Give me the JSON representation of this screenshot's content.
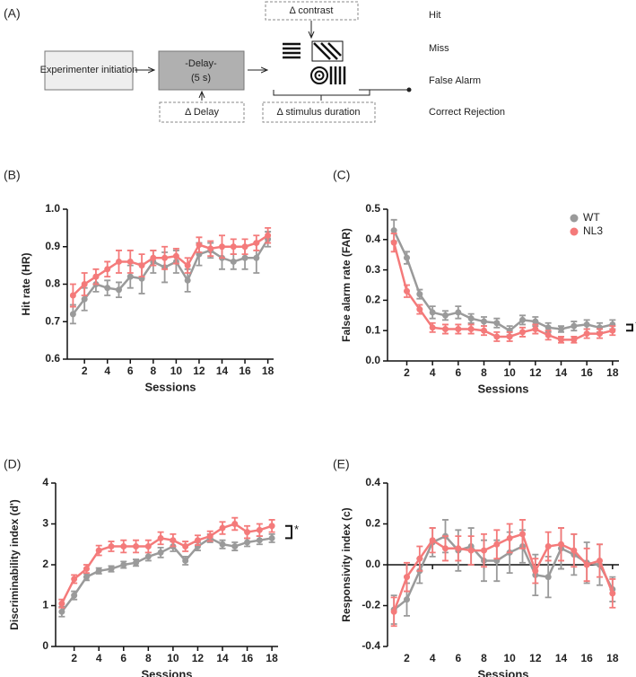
{
  "diagram": {
    "panel_label": "(A)",
    "initiation": "Experimenter initiation",
    "delay": "-Delay-",
    "delay_time": "(5 s)",
    "delta_delay": "Δ Delay",
    "delta_contrast": "Δ contrast",
    "delta_duration": "Δ stimulus duration",
    "outcomes": [
      "Hit",
      "Miss",
      "False Alarm",
      "Correct Rejection"
    ]
  },
  "chart_data": [
    {
      "type": "line",
      "panel_label": "(B)",
      "y_label": "Hit rate (HR)",
      "x_label": "Sessions",
      "x": [
        1,
        2,
        3,
        4,
        5,
        6,
        7,
        8,
        9,
        10,
        11,
        12,
        13,
        14,
        15,
        16,
        17,
        18
      ],
      "xlim": [
        0.5,
        18.5
      ],
      "xticks": [
        2,
        4,
        6,
        8,
        10,
        12,
        14,
        16,
        18
      ],
      "ylim": [
        0.6,
        1
      ],
      "yticks": [
        0.6,
        0.7,
        0.8,
        0.9,
        {
          "value": 1,
          "label": "1.0"
        }
      ],
      "series": [
        {
          "name": "WT",
          "color": "#9a9a9a",
          "values": [
            0.72,
            0.76,
            0.8,
            0.79,
            0.785,
            0.82,
            0.815,
            0.86,
            0.845,
            0.86,
            0.81,
            0.88,
            0.89,
            0.87,
            0.86,
            0.87,
            0.87,
            0.92
          ],
          "errors": [
            0.025,
            0.03,
            0.02,
            0.02,
            0.02,
            0.03,
            0.04,
            0.03,
            0.04,
            0.03,
            0.03,
            0.03,
            0.02,
            0.03,
            0.02,
            0.03,
            0.04,
            0.02
          ]
        },
        {
          "name": "NL3",
          "color": "#f47a7a",
          "values": [
            0.77,
            0.8,
            0.82,
            0.84,
            0.86,
            0.86,
            0.85,
            0.87,
            0.87,
            0.875,
            0.85,
            0.905,
            0.895,
            0.9,
            0.9,
            0.9,
            0.91,
            0.93
          ],
          "errors": [
            0.03,
            0.03,
            0.02,
            0.02,
            0.03,
            0.03,
            0.03,
            0.02,
            0.03,
            0.02,
            0.02,
            0.02,
            0.02,
            0.03,
            0.02,
            0.02,
            0.02,
            0.02
          ]
        }
      ]
    },
    {
      "type": "line",
      "panel_label": "(C)",
      "y_label": "False alarm rate (FAR)",
      "x_label": "Sessions",
      "legend": "upper right",
      "annotation": "*",
      "x": [
        1,
        2,
        3,
        4,
        5,
        6,
        7,
        8,
        9,
        10,
        11,
        12,
        13,
        14,
        15,
        16,
        17,
        18
      ],
      "xlim": [
        0.5,
        18.5
      ],
      "xticks": [
        2,
        4,
        6,
        8,
        10,
        12,
        14,
        16,
        18
      ],
      "ylim": [
        0,
        0.5
      ],
      "yticks": [
        {
          "value": 0,
          "label": "0.0"
        },
        0.1,
        0.2,
        0.3,
        0.4,
        0.5
      ],
      "series": [
        {
          "name": "WT",
          "color": "#9a9a9a",
          "values": [
            0.43,
            0.34,
            0.22,
            0.16,
            0.15,
            0.16,
            0.14,
            0.13,
            0.125,
            0.1,
            0.135,
            0.13,
            0.11,
            0.105,
            0.115,
            0.12,
            0.11,
            0.12
          ],
          "errors": [
            0.035,
            0.02,
            0.015,
            0.02,
            0.015,
            0.02,
            0.015,
            0.015,
            0.015,
            0.015,
            0.015,
            0.015,
            0.015,
            0.01,
            0.015,
            0.015,
            0.015,
            0.015
          ]
        },
        {
          "name": "NL3",
          "color": "#f47a7a",
          "values": [
            0.39,
            0.23,
            0.17,
            0.11,
            0.105,
            0.105,
            0.105,
            0.1,
            0.08,
            0.08,
            0.095,
            0.105,
            0.085,
            0.07,
            0.07,
            0.09,
            0.09,
            0.1
          ],
          "errors": [
            0.03,
            0.02,
            0.015,
            0.015,
            0.015,
            0.015,
            0.015,
            0.015,
            0.015,
            0.015,
            0.015,
            0.015,
            0.015,
            0.01,
            0.01,
            0.015,
            0.015,
            0.015
          ]
        }
      ]
    },
    {
      "type": "line",
      "panel_label": "(D)",
      "y_label": "Discriminability index (d')",
      "x_label": "Sessions",
      "annotation": "*",
      "x": [
        1,
        2,
        3,
        4,
        5,
        6,
        7,
        8,
        9,
        10,
        11,
        12,
        13,
        14,
        15,
        16,
        17,
        18
      ],
      "xlim": [
        0.5,
        18.5
      ],
      "xticks": [
        2,
        4,
        6,
        8,
        10,
        12,
        14,
        16,
        18
      ],
      "ylim": [
        0,
        4
      ],
      "yticks": [
        0,
        1,
        2,
        3,
        4
      ],
      "series": [
        {
          "name": "WT",
          "color": "#9a9a9a",
          "values": [
            0.85,
            1.25,
            1.7,
            1.85,
            1.9,
            2.0,
            2.05,
            2.2,
            2.3,
            2.45,
            2.1,
            2.45,
            2.65,
            2.5,
            2.45,
            2.55,
            2.6,
            2.65
          ],
          "errors": [
            0.12,
            0.1,
            0.08,
            0.07,
            0.07,
            0.08,
            0.08,
            0.1,
            0.12,
            0.12,
            0.1,
            0.1,
            0.1,
            0.1,
            0.1,
            0.1,
            0.1,
            0.1
          ]
        },
        {
          "name": "NL3",
          "color": "#f47a7a",
          "values": [
            1.05,
            1.65,
            1.9,
            2.35,
            2.45,
            2.45,
            2.45,
            2.45,
            2.65,
            2.6,
            2.45,
            2.6,
            2.7,
            2.9,
            3.0,
            2.8,
            2.85,
            2.95
          ],
          "errors": [
            0.1,
            0.1,
            0.1,
            0.12,
            0.12,
            0.15,
            0.15,
            0.15,
            0.15,
            0.15,
            0.12,
            0.12,
            0.12,
            0.15,
            0.15,
            0.15,
            0.15,
            0.15
          ]
        }
      ]
    },
    {
      "type": "line",
      "panel_label": "(E)",
      "y_label": "Responsivity index (c)",
      "x_label": "Sessions",
      "x": [
        1,
        2,
        3,
        4,
        5,
        6,
        7,
        8,
        9,
        10,
        11,
        12,
        13,
        14,
        15,
        16,
        17,
        18
      ],
      "xlim": [
        0.5,
        18.5
      ],
      "xticks": [
        2,
        4,
        6,
        8,
        10,
        12,
        14,
        16,
        18
      ],
      "ylim": [
        -0.4,
        0.4
      ],
      "yticks": [
        -0.4,
        -0.2,
        {
          "value": 0,
          "label": "0.0"
        },
        0.2,
        0.4
      ],
      "series": [
        {
          "name": "WT",
          "color": "#9a9a9a",
          "values": [
            -0.22,
            -0.17,
            -0.03,
            0.11,
            0.14,
            0.07,
            0.09,
            0.02,
            0.02,
            0.06,
            0.09,
            -0.05,
            -0.06,
            0.08,
            0.05,
            0.01,
            0.0,
            -0.12
          ],
          "errors": [
            0.07,
            0.08,
            0.06,
            0.07,
            0.08,
            0.1,
            0.09,
            0.1,
            0.1,
            0.1,
            0.08,
            0.1,
            0.1,
            0.1,
            0.1,
            0.1,
            0.1,
            0.06
          ]
        },
        {
          "name": "NL3",
          "color": "#f47a7a",
          "values": [
            -0.23,
            -0.06,
            0.03,
            0.12,
            0.08,
            0.08,
            0.07,
            0.07,
            0.1,
            0.13,
            0.15,
            -0.03,
            0.09,
            0.1,
            0.07,
            0.0,
            0.02,
            -0.14
          ],
          "errors": [
            0.07,
            0.07,
            0.06,
            0.06,
            0.06,
            0.06,
            0.07,
            0.08,
            0.07,
            0.07,
            0.07,
            0.06,
            0.07,
            0.08,
            0.08,
            0.08,
            0.08,
            0.07
          ]
        }
      ]
    }
  ]
}
